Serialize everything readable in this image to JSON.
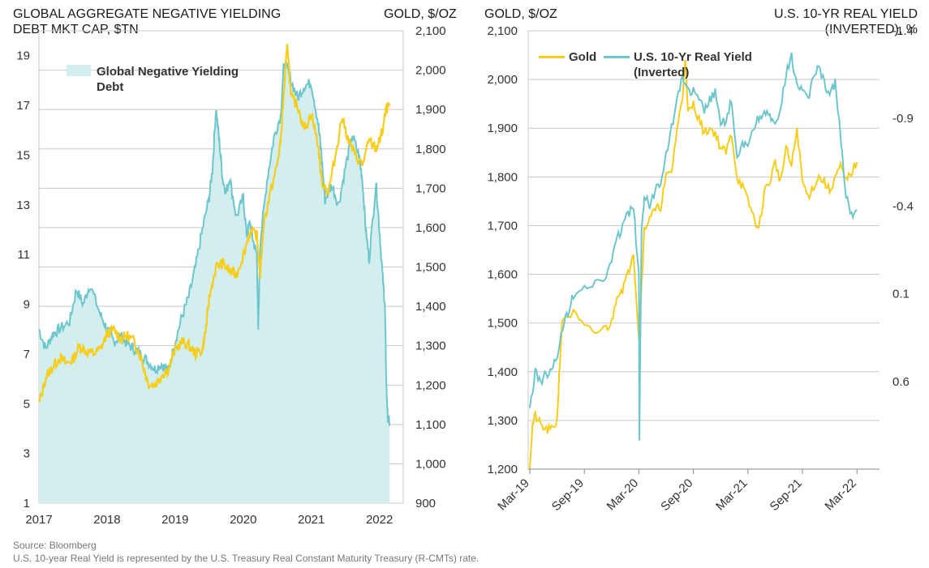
{
  "left_chart": {
    "title_left_1": "GLOBAL AGGREGATE NEGATIVE YIELDING",
    "title_left_2": "DEBT MKT CAP, $TN",
    "title_right": "GOLD, $/OZ",
    "legend_label_1": "Global Negative Yielding",
    "legend_label_2": "Debt"
  },
  "right_chart": {
    "title_left": "GOLD, $/OZ",
    "title_right_1": "U.S. 10-YR REAL YIELD",
    "title_right_2": "(INVERTED), %",
    "legend_gold": "Gold",
    "legend_yield_1": "U.S. 10-Yr Real Yield",
    "legend_yield_2": "(Inverted)"
  },
  "footnote": {
    "source": "Source: Bloomberg",
    "note": "U.S. 10-year Real Yield is represented by the U.S. Treasury Real Constant Maturity Treasury (R-CMTs) rate."
  },
  "colors": {
    "gold": "#f7cd1b",
    "teal": "#6ec6cd",
    "teal_fill": "#d3eeef",
    "grid": "#c8c8c8"
  },
  "chart_data": [
    {
      "type": "area",
      "x_ticks": [
        "2017",
        "2018",
        "2019",
        "2020",
        "2021",
        "2022"
      ],
      "y_left_ticks": [
        "1",
        "3",
        "5",
        "7",
        "9",
        "11",
        "13",
        "15",
        "17",
        "19"
      ],
      "y_right_ticks": [
        "900",
        "1,000",
        "1,100",
        "1,200",
        "1,300",
        "1,400",
        "1,500",
        "1,600",
        "1,700",
        "1,800",
        "1,900",
        "2,000",
        "2,100"
      ],
      "ylim_left": [
        1,
        20
      ],
      "ylim_right": [
        900,
        2100
      ],
      "xlim": [
        2017.0,
        2022.35
      ],
      "grid": true,
      "legend_position": "top-left",
      "series": [
        {
          "name": "Global Negative Yielding Debt",
          "axis": "left",
          "x": [
            2017.0,
            2017.1,
            2017.2,
            2017.3,
            2017.45,
            2017.55,
            2017.65,
            2017.75,
            2017.9,
            2018.0,
            2018.1,
            2018.2,
            2018.3,
            2018.4,
            2018.5,
            2018.6,
            2018.7,
            2018.8,
            2018.9,
            2019.0,
            2019.1,
            2019.2,
            2019.3,
            2019.4,
            2019.5,
            2019.55,
            2019.6,
            2019.65,
            2019.7,
            2019.75,
            2019.8,
            2019.9,
            2020.0,
            2020.05,
            2020.1,
            2020.15,
            2020.2,
            2020.22,
            2020.25,
            2020.35,
            2020.45,
            2020.55,
            2020.6,
            2020.7,
            2020.8,
            2020.9,
            2021.0,
            2021.1,
            2021.15,
            2021.2,
            2021.3,
            2021.4,
            2021.5,
            2021.6,
            2021.7,
            2021.75,
            2021.8,
            2021.85,
            2021.95,
            2022.0,
            2022.05,
            2022.08,
            2022.1,
            2022.12,
            2022.15
          ],
          "values": [
            8.0,
            7.2,
            7.8,
            8.0,
            8.3,
            9.6,
            9.0,
            9.8,
            8.6,
            8.0,
            7.5,
            7.7,
            7.4,
            7.2,
            7.0,
            6.7,
            6.4,
            6.6,
            6.3,
            7.5,
            8.5,
            9.3,
            10.5,
            12.0,
            13.3,
            14.5,
            16.9,
            15.5,
            14.0,
            13.5,
            14.1,
            12.5,
            13.3,
            11.8,
            12.3,
            11.5,
            11.0,
            8.0,
            11.5,
            14.0,
            15.7,
            16.6,
            18.8,
            18.0,
            17.3,
            17.8,
            17.9,
            16.3,
            15.0,
            13.2,
            13.8,
            13.0,
            14.5,
            15.8,
            15.0,
            14.0,
            12.0,
            10.8,
            13.9,
            12.0,
            10.0,
            9.0,
            6.0,
            4.5,
            4.2
          ]
        },
        {
          "name": "Gold",
          "axis": "right",
          "x": [
            2017.0,
            2017.1,
            2017.2,
            2017.3,
            2017.4,
            2017.5,
            2017.6,
            2017.7,
            2017.8,
            2017.9,
            2018.0,
            2018.1,
            2018.2,
            2018.3,
            2018.4,
            2018.5,
            2018.6,
            2018.7,
            2018.8,
            2018.9,
            2019.0,
            2019.1,
            2019.2,
            2019.3,
            2019.4,
            2019.45,
            2019.5,
            2019.6,
            2019.7,
            2019.8,
            2019.9,
            2020.0,
            2020.1,
            2020.2,
            2020.25,
            2020.3,
            2020.4,
            2020.5,
            2020.55,
            2020.6,
            2020.65,
            2020.7,
            2020.8,
            2020.9,
            2021.0,
            2021.1,
            2021.15,
            2021.25,
            2021.35,
            2021.45,
            2021.55,
            2021.65,
            2021.75,
            2021.85,
            2021.95,
            2022.0,
            2022.05,
            2022.1,
            2022.15
          ],
          "values": [
            1150,
            1220,
            1245,
            1270,
            1255,
            1265,
            1300,
            1285,
            1280,
            1290,
            1330,
            1340,
            1320,
            1325,
            1310,
            1270,
            1205,
            1200,
            1225,
            1240,
            1290,
            1310,
            1300,
            1280,
            1290,
            1340,
            1420,
            1500,
            1510,
            1490,
            1480,
            1530,
            1590,
            1580,
            1480,
            1610,
            1690,
            1760,
            1820,
            1950,
            2070,
            1930,
            1910,
            1850,
            1890,
            1810,
            1720,
            1690,
            1780,
            1880,
            1820,
            1780,
            1760,
            1820,
            1800,
            1820,
            1850,
            1900,
            1910
          ]
        }
      ]
    },
    {
      "type": "line",
      "x_ticks": [
        "Mar-19",
        "Sep-19",
        "Mar-20",
        "Sep-20",
        "Mar-21",
        "Sep-21",
        "Mar-22"
      ],
      "y_left_ticks": [
        "1,200",
        "1,300",
        "1,400",
        "1,500",
        "1,600",
        "1,700",
        "1,800",
        "1,900",
        "2,000",
        "2,100"
      ],
      "y_right_ticks": [
        "-1.4",
        "-0.9",
        "-0.4",
        "0.1",
        "0.6"
      ],
      "ylim_left": [
        1200,
        2100
      ],
      "ylim_right": [
        1.1,
        -1.4
      ],
      "grid": true,
      "legend_position": "top-left",
      "series": [
        {
          "name": "Gold",
          "axis": "left",
          "x": [
            0.0,
            0.05,
            0.1,
            0.2,
            0.3,
            0.4,
            0.5,
            0.55,
            0.6,
            0.8,
            1.0,
            1.2,
            1.4,
            1.5,
            1.6,
            1.7,
            1.8,
            1.9,
            2.0,
            2.05,
            2.1,
            2.2,
            2.3,
            2.4,
            2.5,
            2.6,
            2.7,
            2.8,
            2.85,
            2.9,
            3.0,
            3.1,
            3.2,
            3.3,
            3.4,
            3.5,
            3.6,
            3.7,
            3.8,
            3.9,
            4.0,
            4.1,
            4.2,
            4.3,
            4.4,
            4.5,
            4.6,
            4.7,
            4.8,
            4.9,
            5.0,
            5.1,
            5.2,
            5.3,
            5.4,
            5.5,
            5.6,
            5.7,
            5.8,
            5.9,
            6.0
          ],
          "values": [
            1210,
            1290,
            1310,
            1290,
            1280,
            1280,
            1300,
            1420,
            1510,
            1520,
            1490,
            1480,
            1490,
            1500,
            1560,
            1570,
            1600,
            1650,
            1470,
            1580,
            1690,
            1720,
            1730,
            1740,
            1800,
            1810,
            1900,
            1960,
            2050,
            1930,
            1950,
            1920,
            1890,
            1900,
            1890,
            1860,
            1850,
            1890,
            1800,
            1780,
            1750,
            1720,
            1690,
            1770,
            1790,
            1830,
            1790,
            1860,
            1820,
            1900,
            1790,
            1760,
            1780,
            1800,
            1790,
            1770,
            1800,
            1820,
            1790,
            1810,
            1830
          ]
        },
        {
          "name": "U.S. 10-Yr Real Yield (Inverted)",
          "axis": "right",
          "x": [
            0.0,
            0.1,
            0.2,
            0.3,
            0.4,
            0.5,
            0.6,
            0.7,
            0.8,
            1.0,
            1.2,
            1.4,
            1.5,
            1.6,
            1.7,
            1.8,
            1.9,
            2.0,
            2.01,
            2.05,
            2.1,
            2.2,
            2.3,
            2.4,
            2.5,
            2.6,
            2.7,
            2.8,
            2.9,
            3.0,
            3.1,
            3.2,
            3.3,
            3.4,
            3.5,
            3.6,
            3.7,
            3.8,
            3.9,
            4.0,
            4.1,
            4.2,
            4.3,
            4.4,
            4.5,
            4.6,
            4.7,
            4.8,
            4.9,
            5.0,
            5.1,
            5.2,
            5.3,
            5.4,
            5.5,
            5.6,
            5.7,
            5.75,
            5.8,
            5.9,
            6.0
          ],
          "values": [
            0.75,
            0.55,
            0.6,
            0.55,
            0.55,
            0.45,
            0.3,
            0.2,
            0.1,
            0.05,
            0.05,
            0.0,
            -0.1,
            -0.2,
            -0.3,
            -0.35,
            -0.4,
            0.0,
            0.95,
            -0.3,
            -0.45,
            -0.4,
            -0.5,
            -0.55,
            -0.7,
            -0.85,
            -1.0,
            -1.15,
            -1.05,
            -1.05,
            -1.0,
            -0.95,
            -1.0,
            -1.05,
            -0.85,
            -0.9,
            -1.0,
            -0.65,
            -0.75,
            -0.75,
            -0.85,
            -0.9,
            -0.95,
            -0.9,
            -0.85,
            -0.95,
            -1.15,
            -1.25,
            -1.1,
            -1.05,
            -1.0,
            -1.15,
            -1.2,
            -1.1,
            -1.05,
            -1.1,
            -0.8,
            -0.6,
            -0.45,
            -0.35,
            -0.38
          ]
        }
      ]
    }
  ]
}
